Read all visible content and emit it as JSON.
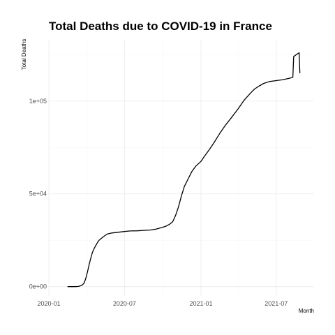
{
  "chart_data": {
    "type": "line",
    "title": "Total Deaths due to COVID-19 in France",
    "xlabel": "Month",
    "ylabel": "Total Deaths",
    "x_ticks": [
      "2020-01",
      "2020-07",
      "2021-01",
      "2021-07"
    ],
    "y_ticks": [
      "0e+00",
      "5e+04",
      "1e+05"
    ],
    "y_tick_values": [
      0,
      50000,
      100000
    ],
    "xlim": [
      "2020-01-01",
      "2021-09-30"
    ],
    "ylim": [
      -5000,
      133000
    ],
    "grid": true,
    "legend": "none",
    "line_color": "#000000",
    "series": [
      {
        "x": [
          "2020-02-15",
          "2020-02-25",
          "2020-03-05",
          "2020-03-12",
          "2020-03-18",
          "2020-03-22",
          "2020-03-26",
          "2020-03-30",
          "2020-04-03",
          "2020-04-07",
          "2020-04-11",
          "2020-04-15",
          "2020-04-20",
          "2020-04-25",
          "2020-04-30",
          "2020-05-06",
          "2020-05-12",
          "2020-05-20",
          "2020-06-01",
          "2020-06-15",
          "2020-07-01",
          "2020-07-15",
          "2020-08-01",
          "2020-08-15",
          "2020-09-01",
          "2020-09-15",
          "2020-10-01",
          "2020-10-10",
          "2020-10-18",
          "2020-10-25",
          "2020-11-01",
          "2020-11-08",
          "2020-11-15",
          "2020-11-22",
          "2020-12-01",
          "2020-12-10",
          "2020-12-20",
          "2021-01-01",
          "2021-01-10",
          "2021-01-20",
          "2021-02-01",
          "2021-02-15",
          "2021-03-01",
          "2021-03-15",
          "2021-04-01",
          "2021-04-15",
          "2021-05-01",
          "2021-05-10",
          "2021-05-20",
          "2021-06-01",
          "2021-06-15",
          "2021-07-01",
          "2021-07-15",
          "2021-08-01",
          "2021-08-10",
          "2021-08-12",
          "2021-08-25",
          "2021-08-27"
        ],
        "y": [
          0,
          0,
          0,
          100,
          500,
          1000,
          2000,
          4500,
          8000,
          12000,
          15500,
          18500,
          21000,
          23000,
          24800,
          26000,
          27000,
          28300,
          28900,
          29300,
          29700,
          30000,
          30100,
          30300,
          30500,
          31000,
          32000,
          32700,
          33700,
          35000,
          38500,
          43000,
          49000,
          54000,
          58000,
          62000,
          65000,
          67500,
          70500,
          73500,
          77500,
          82500,
          87000,
          91000,
          96000,
          100500,
          104500,
          106500,
          108000,
          109500,
          110500,
          111000,
          111400,
          112200,
          112800,
          124000,
          126000,
          115000
        ]
      }
    ]
  }
}
